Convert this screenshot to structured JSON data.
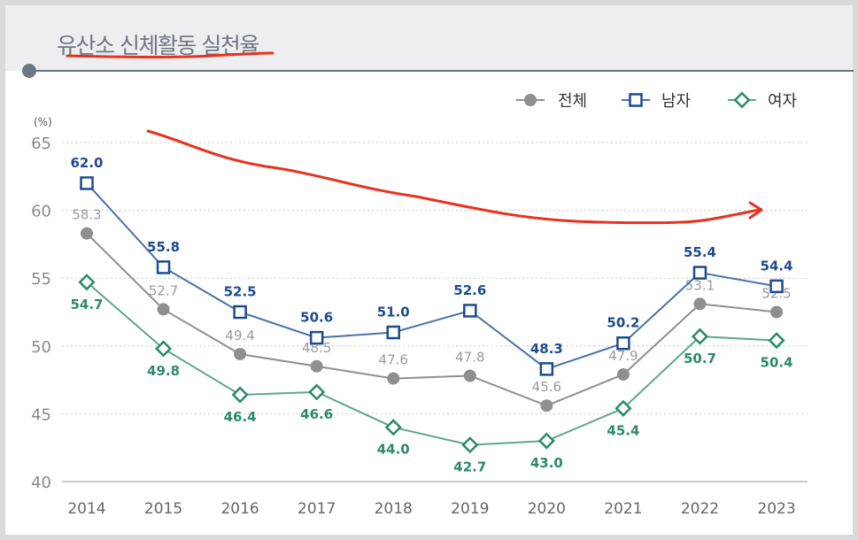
{
  "title": "유산소 신체활동 실천율",
  "colors": {
    "total": "#8f8f8f",
    "male": "#1d4b8f",
    "male_line": "#4a72a8",
    "female": "#2a8a6a",
    "female_line": "#5aa88a",
    "annotation": "#e8321e",
    "grid": "#c8c8c8"
  },
  "chart_data": {
    "type": "line",
    "ylabel": "(%)",
    "ylim": [
      40,
      65
    ],
    "yticks": [
      "40",
      "45",
      "50",
      "55",
      "60",
      "65"
    ],
    "grid": "horizontal dotted",
    "legend": "top-right",
    "categories": [
      "2014",
      "2015",
      "2016",
      "2017",
      "2018",
      "2019",
      "2020",
      "2021",
      "2022",
      "2023"
    ],
    "series": [
      {
        "name": "전체",
        "marker": "circle",
        "values": [
          58.3,
          52.7,
          49.4,
          48.5,
          47.6,
          47.8,
          45.6,
          47.9,
          53.1,
          52.5
        ],
        "labels": [
          "58.3",
          "52.7",
          "49.4",
          "48.5",
          "47.6",
          "47.8",
          "45.6",
          "47.9",
          "53.1",
          "52.5"
        ]
      },
      {
        "name": "남자",
        "marker": "square",
        "values": [
          62.0,
          55.8,
          52.5,
          50.6,
          51.0,
          52.6,
          48.3,
          50.2,
          55.4,
          54.4
        ],
        "labels": [
          "62.0",
          "55.8",
          "52.5",
          "50.6",
          "51.0",
          "52.6",
          "48.3",
          "50.2",
          "55.4",
          "54.4"
        ]
      },
      {
        "name": "여자",
        "marker": "diamond",
        "values": [
          54.7,
          49.8,
          46.4,
          46.6,
          44.0,
          42.7,
          43.0,
          45.4,
          50.7,
          50.4
        ],
        "labels": [
          "54.7",
          "49.8",
          "46.4",
          "46.6",
          "44.0",
          "42.7",
          "43.0",
          "45.4",
          "50.7",
          "50.4"
        ]
      }
    ],
    "annotation": "hand-drawn red arrow showing declining trend"
  }
}
